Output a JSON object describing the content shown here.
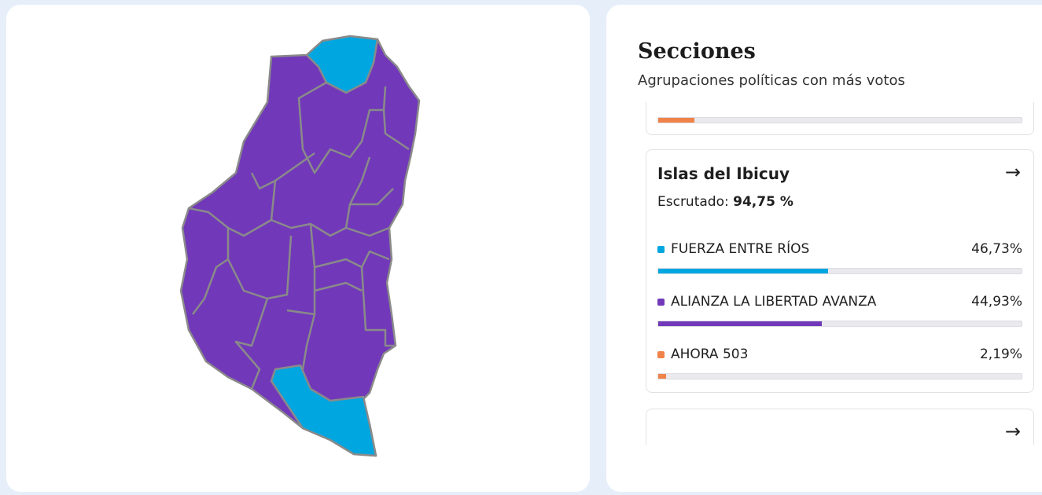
{
  "colors": {
    "fuerza": "#00a6e0",
    "lla": "#7139b9",
    "ahora": "#f0834a",
    "border": "#8a8a8a"
  },
  "map": {
    "regions_won": {
      "FUERZA ENTRE RÍOS": [
        "north",
        "Islas del Ibicuy"
      ],
      "ALIANZA LA LIBERTAD AVANZA": "rest"
    }
  },
  "header": {
    "title": "Secciones",
    "subtitle": "Agrupaciones políticas con más votos"
  },
  "prev_card": {
    "bar_color": "#f0834a",
    "percent": 10
  },
  "card": {
    "title": "Islas del Ibicuy",
    "escrutado_label": "Escrutado:",
    "escrutado_value": "94,75 %",
    "parties": [
      {
        "name": "FUERZA ENTRE RÍOS",
        "pct": "46,73%",
        "value": 46.73,
        "color": "#00a6e0"
      },
      {
        "name": "ALIANZA LA LIBERTAD AVANZA",
        "pct": "44,93%",
        "value": 44.93,
        "color": "#7139b9"
      },
      {
        "name": "AHORA 503",
        "pct": "2,19%",
        "value": 2.19,
        "color": "#f0834a"
      }
    ]
  },
  "icons": {
    "arrow": "arrow-right-icon"
  }
}
